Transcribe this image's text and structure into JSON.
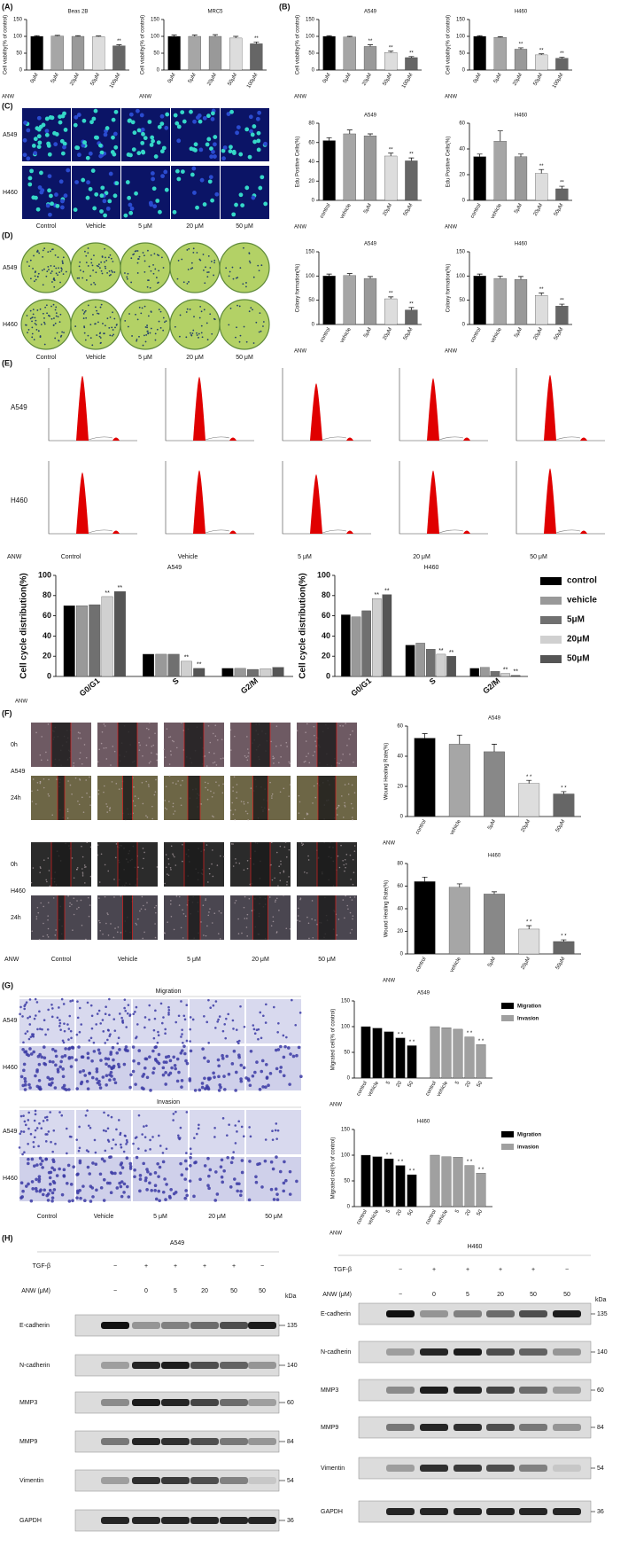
{
  "panels": [
    "(A)",
    "(B)",
    "(C)",
    "(D)",
    "(E)",
    "(F)",
    "(G)",
    "(H)"
  ],
  "image_labels": {
    "cells": [
      "A549",
      "H460"
    ],
    "columns": [
      "Control",
      "Vehicle",
      "5 μM",
      "20 μM",
      "50 μM"
    ],
    "xlabel": "ANW",
    "times": [
      "0h",
      "24h"
    ],
    "assays": [
      "Migration",
      "Invasion"
    ]
  },
  "chart_data": [
    {
      "type": "bar",
      "title": "Beas 2B",
      "ylabel": "Cell viability(% of control)",
      "xlabel": "ANW",
      "categories": [
        "0μM",
        "5μM",
        "20μM",
        "50μM",
        "100μM"
      ],
      "values": [
        100,
        101,
        100,
        99,
        72
      ],
      "errors": [
        2,
        2,
        2,
        2,
        3
      ],
      "colors": [
        "#000000",
        "#a6a6a6",
        "#999999",
        "#dddddd",
        "#666666"
      ],
      "significance": [
        null,
        null,
        null,
        null,
        "**"
      ],
      "ylim": [
        0,
        150
      ],
      "yticks": [
        0,
        50,
        100,
        150
      ]
    },
    {
      "type": "bar",
      "title": "MRC5",
      "ylabel": "Cell viability(% of control)",
      "xlabel": "ANW",
      "categories": [
        "0μM",
        "5μM",
        "20μM",
        "50μM",
        "100μM"
      ],
      "values": [
        100,
        100,
        100,
        95,
        78
      ],
      "errors": [
        4,
        4,
        5,
        5,
        5
      ],
      "colors": [
        "#000000",
        "#a6a6a6",
        "#999999",
        "#dddddd",
        "#666666"
      ],
      "significance": [
        null,
        null,
        null,
        null,
        "**"
      ],
      "ylim": [
        0,
        150
      ],
      "yticks": [
        0,
        50,
        100,
        150
      ]
    },
    {
      "type": "bar",
      "title": "A549",
      "ylabel": "Cell viability(% of control)",
      "xlabel": "ANW",
      "categories": [
        "0μM",
        "5μM",
        "20μM",
        "50μM",
        "100μM"
      ],
      "values": [
        100,
        98,
        70,
        52,
        37
      ],
      "errors": [
        2,
        2,
        5,
        4,
        3
      ],
      "colors": [
        "#000000",
        "#a6a6a6",
        "#999999",
        "#dddddd",
        "#666666"
      ],
      "significance": [
        null,
        null,
        "**",
        "**",
        "**"
      ],
      "ylim": [
        0,
        150
      ],
      "yticks": [
        0,
        50,
        100,
        150
      ]
    },
    {
      "type": "bar",
      "title": "H460",
      "ylabel": "Cell viability(% of control)",
      "xlabel": "ANW",
      "categories": [
        "0μM",
        "5μM",
        "20μM",
        "50μM",
        "100μM"
      ],
      "values": [
        100,
        97,
        62,
        45,
        35
      ],
      "errors": [
        2,
        2,
        4,
        3,
        3
      ],
      "colors": [
        "#000000",
        "#a6a6a6",
        "#999999",
        "#dddddd",
        "#666666"
      ],
      "significance": [
        null,
        null,
        "**",
        "**",
        "**"
      ],
      "ylim": [
        0,
        150
      ],
      "yticks": [
        0,
        50,
        100,
        150
      ]
    },
    {
      "type": "bar",
      "title": "A549",
      "ylabel": "Edu Positive Cells(%)",
      "xlabel": "ANW",
      "categories": [
        "control",
        "vehicle",
        "5μM",
        "20μM",
        "50μM"
      ],
      "values": [
        62,
        69,
        67,
        46,
        41
      ],
      "errors": [
        3,
        4,
        2,
        3,
        3
      ],
      "colors": [
        "#000000",
        "#a6a6a6",
        "#999999",
        "#dddddd",
        "#666666"
      ],
      "significance": [
        null,
        null,
        null,
        "**",
        "**"
      ],
      "ylim": [
        0,
        80
      ],
      "yticks": [
        0,
        20,
        40,
        60,
        80
      ]
    },
    {
      "type": "bar",
      "title": "H460",
      "ylabel": "Edu Positive Cells(%)",
      "xlabel": "ANW",
      "categories": [
        "control",
        "vehicle",
        "5μM",
        "20μM",
        "50μM"
      ],
      "values": [
        34,
        46,
        34,
        21,
        9
      ],
      "errors": [
        2,
        8,
        2,
        3,
        2
      ],
      "colors": [
        "#000000",
        "#a6a6a6",
        "#999999",
        "#dddddd",
        "#666666"
      ],
      "significance": [
        null,
        null,
        null,
        "**",
        "**"
      ],
      "ylim": [
        0,
        60
      ],
      "yticks": [
        0,
        20,
        40,
        60
      ]
    },
    {
      "type": "bar",
      "title": "A549",
      "ylabel": "Colony formation(%)",
      "xlabel": "ANW",
      "categories": [
        "control",
        "vehicle",
        "5μM",
        "20μM",
        "50μM"
      ],
      "values": [
        100,
        101,
        95,
        53,
        30
      ],
      "errors": [
        4,
        4,
        4,
        4,
        5
      ],
      "colors": [
        "#000000",
        "#a6a6a6",
        "#999999",
        "#dddddd",
        "#666666"
      ],
      "significance": [
        null,
        null,
        null,
        "**",
        "**"
      ],
      "ylim": [
        0,
        150
      ],
      "yticks": [
        0,
        50,
        100,
        150
      ]
    },
    {
      "type": "bar",
      "title": "H460",
      "ylabel": "Colony formation(%)",
      "xlabel": "ANW",
      "categories": [
        "control",
        "vehicle",
        "5μM",
        "20μM",
        "50μM"
      ],
      "values": [
        100,
        95,
        93,
        60,
        38
      ],
      "errors": [
        4,
        5,
        6,
        5,
        4
      ],
      "colors": [
        "#000000",
        "#a6a6a6",
        "#999999",
        "#dddddd",
        "#666666"
      ],
      "significance": [
        null,
        null,
        null,
        "**",
        "**"
      ],
      "ylim": [
        0,
        150
      ],
      "yticks": [
        0,
        50,
        100,
        150
      ]
    },
    {
      "type": "bar",
      "title": "A549",
      "ylabel": "Cell cycle distribution(%)",
      "xlabel": "ANW",
      "grouping": "category",
      "categories": [
        "G0/G1",
        "S",
        "G2/M"
      ],
      "series": [
        {
          "color": "#000000",
          "values": [
            70,
            22,
            8
          ]
        },
        {
          "color": "#999999",
          "values": [
            70,
            22,
            8
          ]
        },
        {
          "color": "#707070",
          "values": [
            71,
            22,
            7
          ]
        },
        {
          "color": "#d0d0d0",
          "values": [
            79,
            15,
            7.5
          ],
          "significance": [
            "**",
            "**",
            null
          ]
        },
        {
          "color": "#555555",
          "values": [
            84,
            8,
            9
          ],
          "significance": [
            "**",
            "**",
            null
          ]
        }
      ],
      "ylim": [
        0,
        100
      ],
      "yticks": [
        0,
        20,
        40,
        60,
        80,
        100
      ]
    },
    {
      "type": "bar",
      "title": "H460",
      "ylabel": "Cell cycle distribution(%)",
      "grouping": "category",
      "categories": [
        "G0/G1",
        "S",
        "G2/M"
      ],
      "legend": "right",
      "series": [
        {
          "name": "control",
          "color": "#000000",
          "values": [
            61,
            31,
            8
          ]
        },
        {
          "name": "vehicle",
          "color": "#999999",
          "values": [
            59,
            33,
            9
          ]
        },
        {
          "name": "5μM",
          "color": "#707070",
          "values": [
            65,
            27,
            5
          ]
        },
        {
          "name": "20μM",
          "color": "#d0d0d0",
          "values": [
            77,
            22,
            3
          ],
          "significance": [
            "**",
            "**",
            "**"
          ]
        },
        {
          "name": "50μM",
          "color": "#555555",
          "values": [
            81,
            20,
            1
          ],
          "significance": [
            "**",
            "**",
            "**"
          ]
        }
      ],
      "ylim": [
        0,
        100
      ],
      "yticks": [
        0,
        20,
        40,
        60,
        80,
        100
      ]
    },
    {
      "type": "bar",
      "title": "A549",
      "ylabel": "Wound Healing Rate(%)",
      "xlabel": "ANW",
      "categories": [
        "control",
        "vehicle",
        "5μM",
        "20μM",
        "50μM"
      ],
      "values": [
        52,
        48,
        43,
        22,
        15
      ],
      "errors": [
        3,
        6,
        5,
        2,
        1.5
      ],
      "colors": [
        "#000000",
        "#a6a6a6",
        "#888888",
        "#dddddd",
        "#666666"
      ],
      "significance": [
        null,
        null,
        null,
        "* *",
        "* *"
      ],
      "ylim": [
        0,
        60
      ],
      "yticks": [
        0,
        20,
        40,
        60
      ]
    },
    {
      "type": "bar",
      "title": "H460",
      "ylabel": "Wound Healing Rate(%)",
      "xlabel": "ANW",
      "categories": [
        "control",
        "vehicle",
        "5μM",
        "20μM",
        "50μM"
      ],
      "values": [
        64,
        59,
        53,
        22,
        11
      ],
      "errors": [
        4,
        3,
        2,
        3,
        1.5
      ],
      "colors": [
        "#000000",
        "#a6a6a6",
        "#888888",
        "#dddddd",
        "#666666"
      ],
      "significance": [
        null,
        null,
        null,
        "* *",
        "* *"
      ],
      "ylim": [
        0,
        80
      ],
      "yticks": [
        0,
        20,
        40,
        60,
        80
      ]
    },
    {
      "type": "bar",
      "title": "A549",
      "ylabel": "Migrated cell(% of control)",
      "xlabel": "ANW",
      "grouping": "series",
      "legend": "right",
      "categories": [
        "control",
        "vehicle",
        "5",
        "20",
        "50"
      ],
      "series": [
        {
          "name": "Migration",
          "color": "#000000",
          "values": [
            100,
            97,
            90,
            78,
            63
          ],
          "significance": [
            null,
            null,
            null,
            "* *",
            "* *"
          ]
        },
        {
          "name": "Invasion",
          "color": "#a0a0a0",
          "values": [
            100,
            98,
            95,
            80,
            65
          ],
          "significance": [
            null,
            null,
            null,
            "* *",
            "* *"
          ]
        }
      ],
      "ylim": [
        0,
        150
      ],
      "yticks": [
        0,
        50,
        100,
        150
      ]
    },
    {
      "type": "bar",
      "title": "H460",
      "ylabel": "Migrated cell(% of control)",
      "xlabel": "ANW",
      "grouping": "series",
      "legend": "right",
      "categories": [
        "control",
        "vehicle",
        "5",
        "20",
        "50"
      ],
      "series": [
        {
          "name": "Migration",
          "color": "#000000",
          "values": [
            100,
            97,
            93,
            80,
            62
          ],
          "significance": [
            null,
            null,
            "* *",
            "* *",
            "* *"
          ]
        },
        {
          "name": "invasion",
          "color": "#a0a0a0",
          "values": [
            100,
            97,
            96,
            80,
            65
          ],
          "significance": [
            null,
            null,
            null,
            "* *",
            "* *"
          ]
        }
      ],
      "ylim": [
        0,
        150
      ],
      "yticks": [
        0,
        50,
        100,
        150
      ]
    }
  ],
  "blots": [
    {
      "title": "A549",
      "unit": "kDa",
      "treatments": [
        {
          "label": "TGF-β",
          "lanes": [
            "−",
            "+",
            "+",
            "+",
            "+",
            "−"
          ]
        },
        {
          "label": "ANW (μM)",
          "lanes": [
            "−",
            "0",
            "5",
            "20",
            "50",
            "50"
          ]
        }
      ],
      "proteins": [
        {
          "name": "E-cadherin",
          "kda": 135
        },
        {
          "name": "N-cadherin",
          "kda": 140
        },
        {
          "name": "MMP3",
          "kda": 60
        },
        {
          "name": "MMP9",
          "kda": 84
        },
        {
          "name": "Vimentin",
          "kda": 54
        },
        {
          "name": "GAPDH",
          "kda": 36
        }
      ]
    },
    {
      "title": "H460",
      "unit": "kDa",
      "treatments": [
        {
          "label": "TGF-β",
          "lanes": [
            "−",
            "+",
            "+",
            "+",
            "+",
            "−"
          ]
        },
        {
          "label": "ANW (μM)",
          "lanes": [
            "−",
            "0",
            "5",
            "20",
            "50",
            "50"
          ]
        }
      ],
      "proteins": [
        {
          "name": "E-cadherin",
          "kda": 135
        },
        {
          "name": "N-cadherin",
          "kda": 140
        },
        {
          "name": "MMP3",
          "kda": 60
        },
        {
          "name": "MMP9",
          "kda": 84
        },
        {
          "name": "Vimentin",
          "kda": 54
        },
        {
          "name": "GAPDH",
          "kda": 36
        }
      ]
    }
  ]
}
